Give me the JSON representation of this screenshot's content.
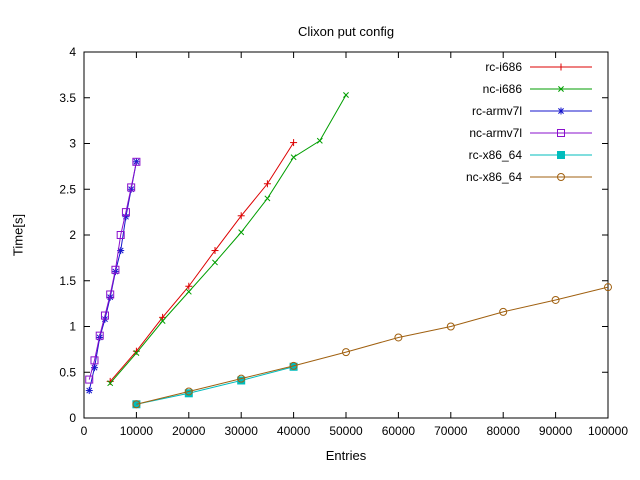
{
  "chart_data": {
    "type": "line",
    "title": "Clixon put config",
    "xlabel": "Entries",
    "ylabel": "Time[s]",
    "xlim": [
      0,
      100000
    ],
    "ylim": [
      0,
      4
    ],
    "xticks": [
      0,
      10000,
      20000,
      30000,
      40000,
      50000,
      60000,
      70000,
      80000,
      90000,
      100000
    ],
    "yticks": [
      0,
      0.5,
      1,
      1.5,
      2,
      2.5,
      3,
      3.5,
      4
    ],
    "grid": false,
    "legend_position": "top-right-inside",
    "series": [
      {
        "name": "rc-i686",
        "color": "#dd0000",
        "marker": "plus",
        "points": [
          [
            5000,
            0.4
          ],
          [
            10000,
            0.73
          ],
          [
            15000,
            1.1
          ],
          [
            20000,
            1.44
          ],
          [
            25000,
            1.83
          ],
          [
            30000,
            2.21
          ],
          [
            35000,
            2.56
          ],
          [
            40000,
            3.01
          ]
        ]
      },
      {
        "name": "nc-i686",
        "color": "#009e00",
        "marker": "cross",
        "points": [
          [
            5000,
            0.38
          ],
          [
            10000,
            0.71
          ],
          [
            15000,
            1.06
          ],
          [
            20000,
            1.38
          ],
          [
            25000,
            1.7
          ],
          [
            30000,
            2.03
          ],
          [
            35000,
            2.4
          ],
          [
            40000,
            2.85
          ],
          [
            45000,
            3.03
          ],
          [
            50000,
            3.53
          ]
        ]
      },
      {
        "name": "rc-armv7l",
        "color": "#1515cc",
        "marker": "asterisk",
        "points": [
          [
            1000,
            0.3
          ],
          [
            2000,
            0.55
          ],
          [
            3000,
            0.88
          ],
          [
            4000,
            1.08
          ],
          [
            5000,
            1.32
          ],
          [
            6000,
            1.6
          ],
          [
            7000,
            1.83
          ],
          [
            8000,
            2.2
          ],
          [
            9000,
            2.5
          ],
          [
            10000,
            2.8
          ]
        ]
      },
      {
        "name": "nc-armv7l",
        "color": "#8a10cc",
        "marker": "square-open",
        "points": [
          [
            1000,
            0.42
          ],
          [
            2000,
            0.63
          ],
          [
            3000,
            0.9
          ],
          [
            4000,
            1.12
          ],
          [
            5000,
            1.35
          ],
          [
            6000,
            1.62
          ],
          [
            7000,
            2.0
          ],
          [
            8000,
            2.25
          ],
          [
            9000,
            2.52
          ],
          [
            10000,
            2.8
          ]
        ]
      },
      {
        "name": "rc-x86_64",
        "color": "#00bcbc",
        "marker": "square-filled",
        "points": [
          [
            10000,
            0.15
          ],
          [
            20000,
            0.27
          ],
          [
            30000,
            0.41
          ],
          [
            40000,
            0.56
          ]
        ]
      },
      {
        "name": "nc-x86_64",
        "color": "#a06010",
        "marker": "circle-open",
        "points": [
          [
            10000,
            0.15
          ],
          [
            20000,
            0.29
          ],
          [
            30000,
            0.43
          ],
          [
            40000,
            0.57
          ],
          [
            50000,
            0.72
          ],
          [
            60000,
            0.88
          ],
          [
            70000,
            1.0
          ],
          [
            80000,
            1.16
          ],
          [
            90000,
            1.29
          ],
          [
            100000,
            1.43
          ]
        ]
      }
    ]
  }
}
